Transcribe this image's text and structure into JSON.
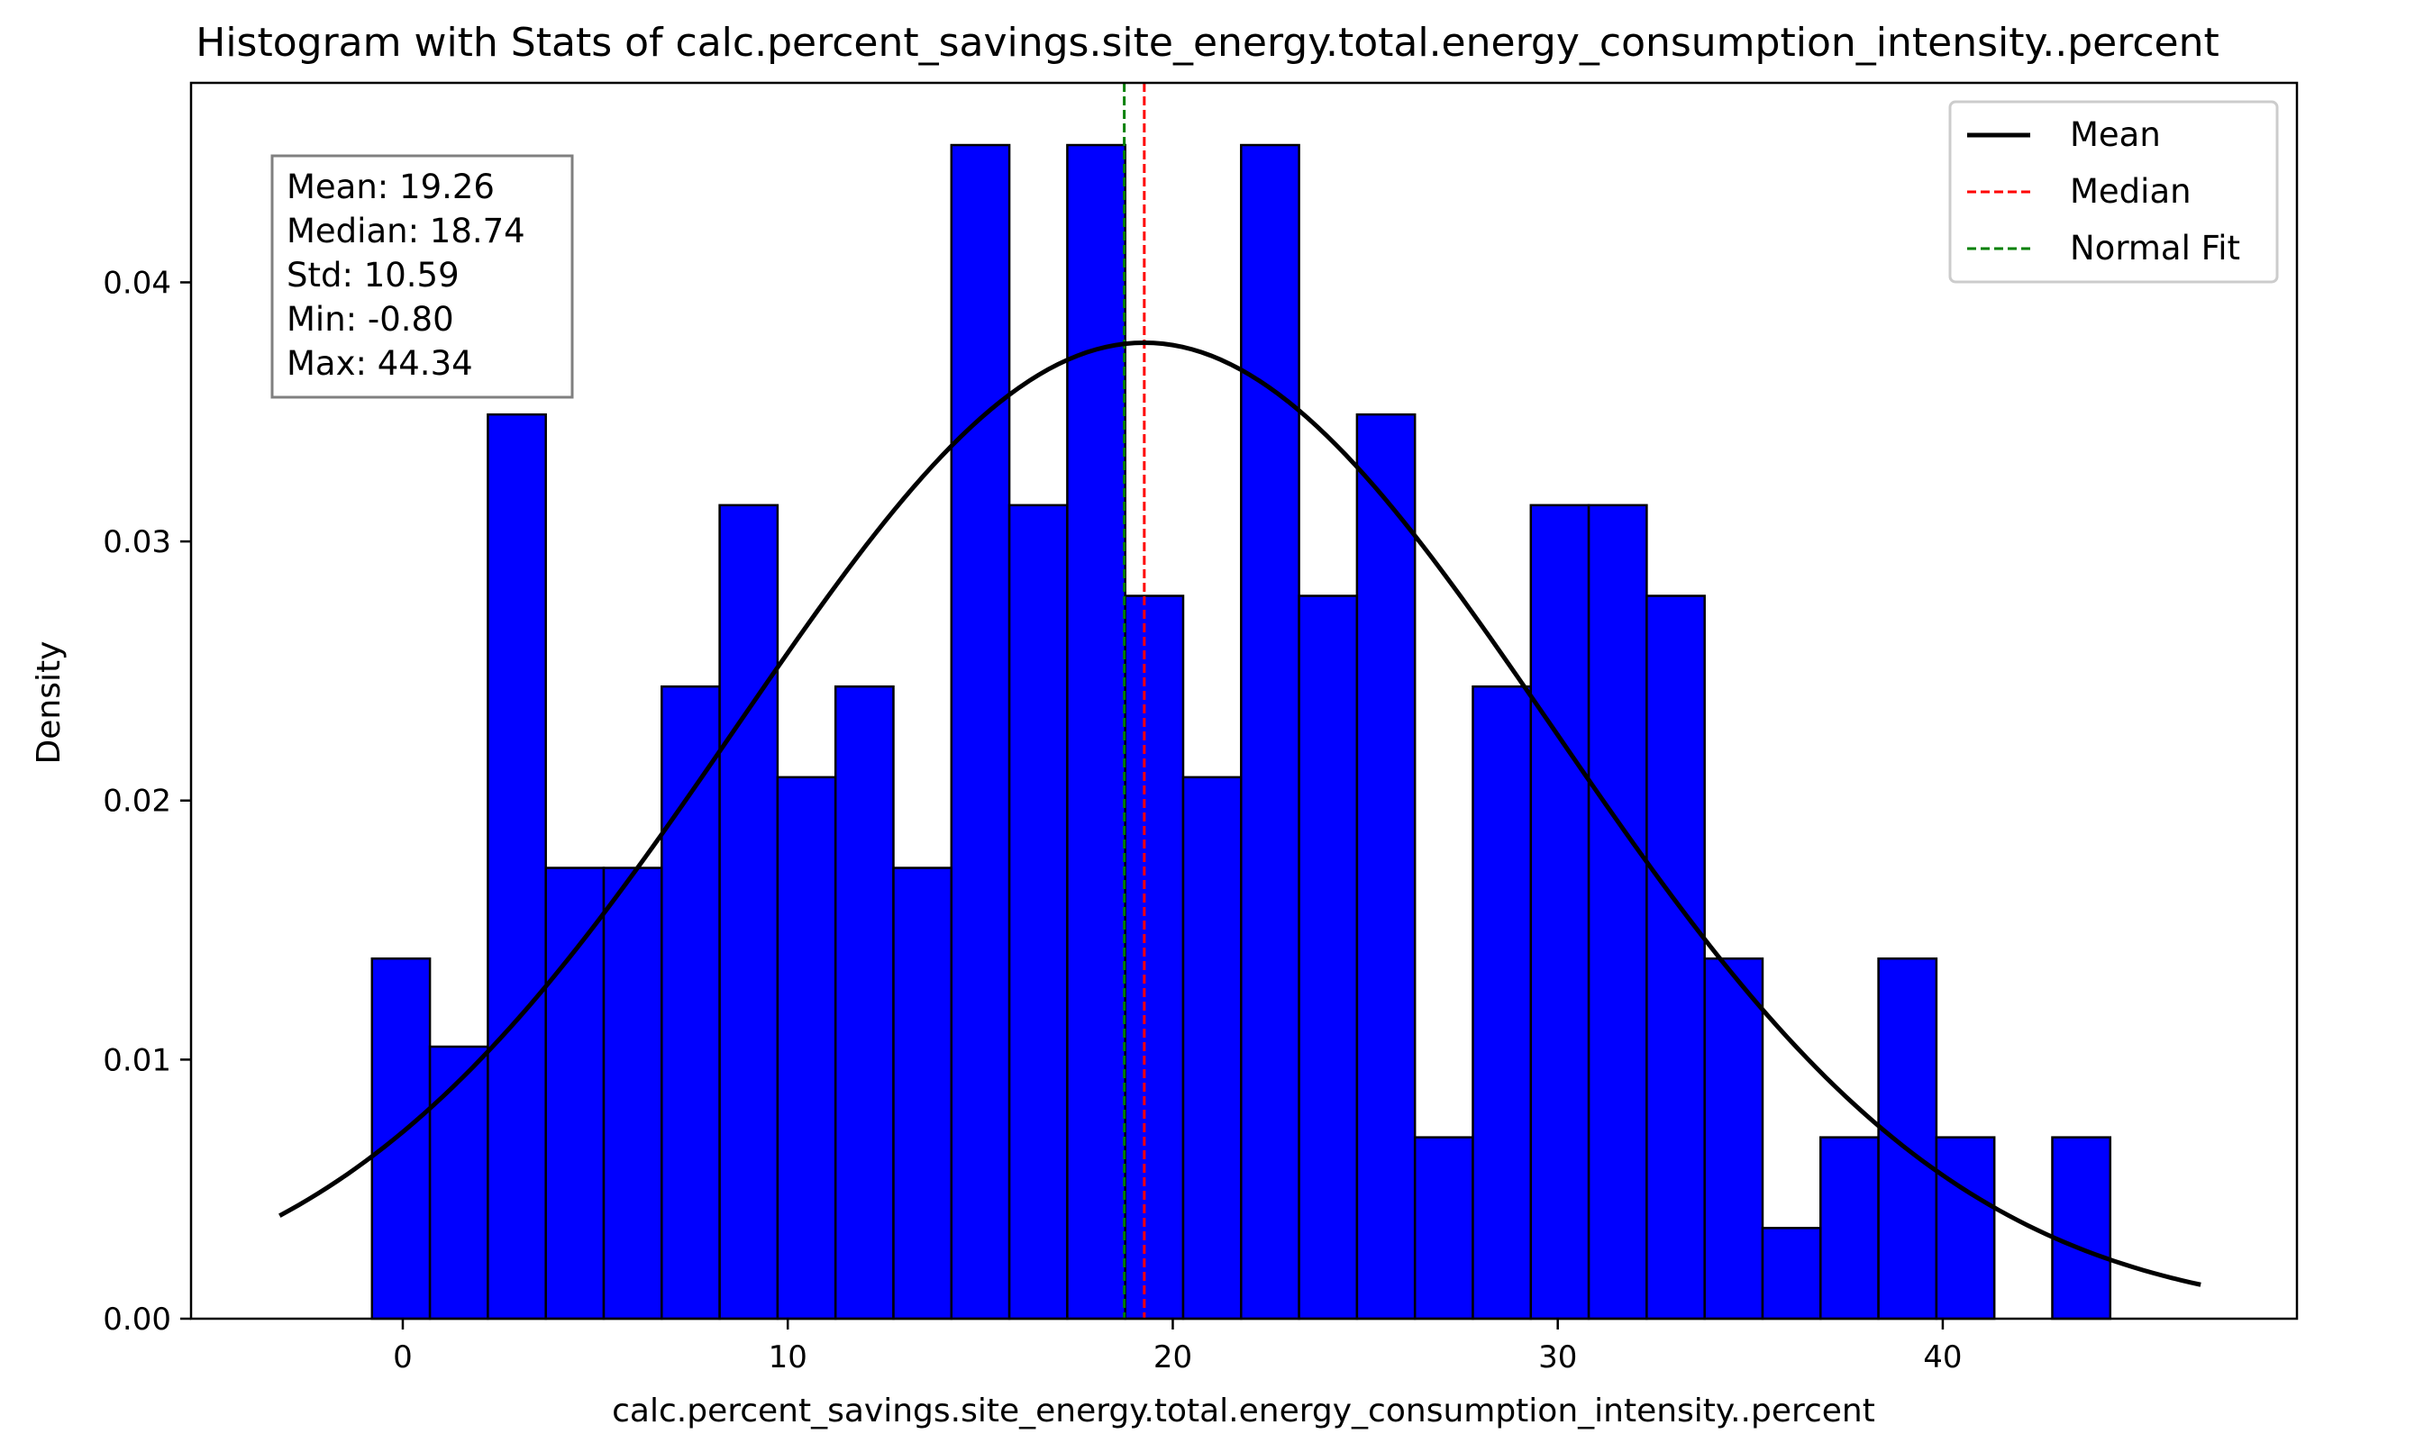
{
  "chart_data": {
    "type": "bar",
    "title": "Histogram with Stats of calc.percent_savings.site_energy.total.energy_consumption_intensity..percent",
    "xlabel": "calc.percent_savings.site_energy.total.energy_consumption_intensity..percent",
    "ylabel": "Density",
    "xlim": [
      -5.5,
      49.2
    ],
    "ylim": [
      0,
      0.0477
    ],
    "xticks": [
      0,
      10,
      20,
      30,
      40
    ],
    "yticks": [
      0.0,
      0.01,
      0.02,
      0.03,
      0.04
    ],
    "ytick_labels": [
      "0.00",
      "0.01",
      "0.02",
      "0.03",
      "0.04"
    ],
    "bin_edges": [
      -0.8,
      0.705,
      2.21,
      3.715,
      5.22,
      6.725,
      8.23,
      9.735,
      11.24,
      12.745,
      14.25,
      15.755,
      17.26,
      18.765,
      20.27,
      21.775,
      23.28,
      24.785,
      26.29,
      27.795,
      29.3,
      30.805,
      32.31,
      33.815,
      35.32,
      36.825,
      38.33,
      39.835,
      41.34,
      42.845,
      44.35
    ],
    "values": [
      0.0139,
      0.0105,
      0.0349,
      0.0174,
      0.0174,
      0.0244,
      0.0314,
      0.0209,
      0.0244,
      0.0174,
      0.0453,
      0.0314,
      0.0453,
      0.0279,
      0.0209,
      0.0453,
      0.0279,
      0.0349,
      0.007,
      0.0244,
      0.0314,
      0.0314,
      0.0279,
      0.0139,
      0.0035,
      0.007,
      0.0139,
      0.007,
      0.0,
      0.007
    ],
    "bar_color": "#0000ff",
    "bar_edge_color": "#000000",
    "normal_fit": {
      "mean": 19.26,
      "std": 10.59,
      "x_range": [
        -3.2,
        46.7
      ],
      "color": "#000000"
    },
    "mean_line": {
      "x": 19.26,
      "color": "#ff0000"
    },
    "median_line": {
      "x": 18.74,
      "color": "#008000"
    },
    "legend": {
      "placement": "top-right",
      "items": [
        {
          "label": "Mean",
          "style": "solid",
          "color": "#000000"
        },
        {
          "label": "Median",
          "style": "dashed",
          "color": "#ff0000"
        },
        {
          "label": "Normal Fit",
          "style": "dashed",
          "color": "#008000"
        }
      ]
    },
    "stats_box": {
      "placement": "top-left",
      "lines": [
        "Mean: 19.26",
        "Median: 18.74",
        "Std: 10.59",
        "Min: -0.80",
        "Max: 44.34"
      ]
    },
    "grid": false
  }
}
